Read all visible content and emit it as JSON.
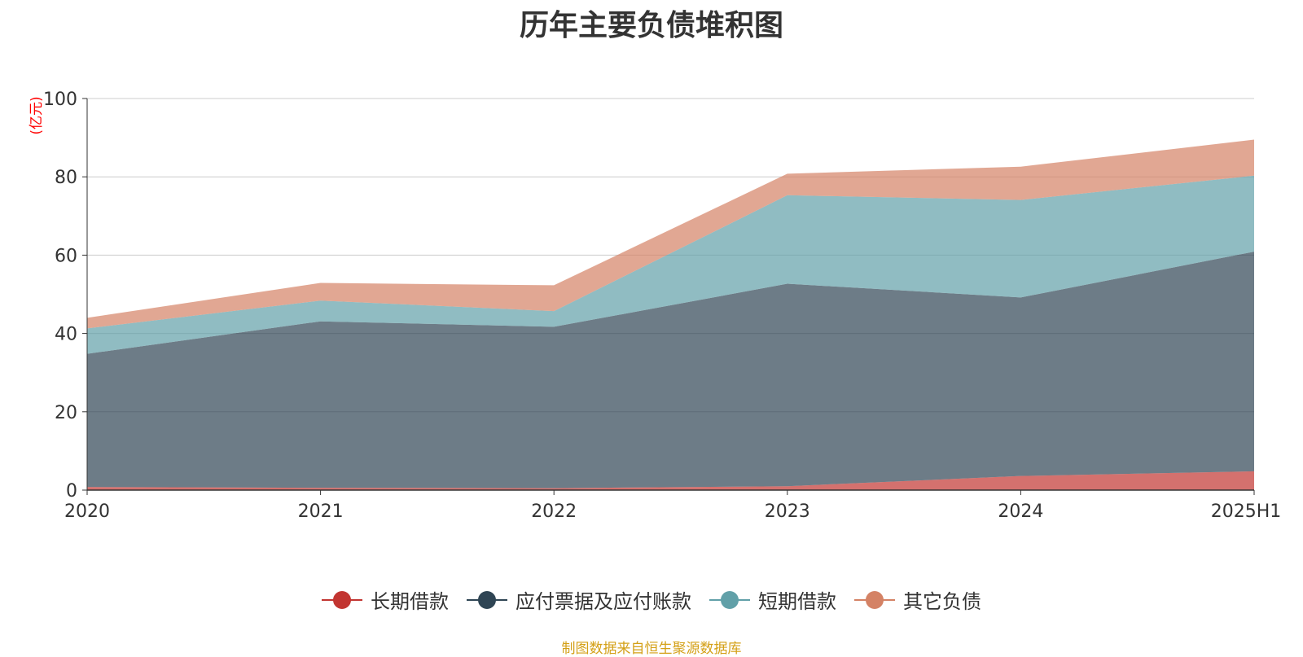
{
  "chart_data": {
    "type": "area",
    "stacked": true,
    "title": "历年主要负债堆积图",
    "ylabel": "(亿元)",
    "categories": [
      "2020",
      "2021",
      "2022",
      "2023",
      "2024",
      "2025H1"
    ],
    "ylim": [
      0,
      100
    ],
    "yticks": [
      0,
      20,
      40,
      60,
      80,
      100
    ],
    "grid": true,
    "legend_position": "bottom",
    "series": [
      {
        "name": "长期借款",
        "color": "#c23531",
        "values": [
          0.8,
          0.6,
          0.5,
          1.0,
          3.6,
          4.8
        ]
      },
      {
        "name": "应付票据及应付账款",
        "color": "#2f4554",
        "values": [
          34,
          42.5,
          41.2,
          51.7,
          45.6,
          56.1
        ]
      },
      {
        "name": "短期借款",
        "color": "#61a0a8",
        "values": [
          6.5,
          5.3,
          4.0,
          22.6,
          24.9,
          19.4
        ]
      },
      {
        "name": "其它负债",
        "color": "#d48265",
        "values": [
          2.7,
          4.5,
          6.6,
          5.5,
          8.5,
          9.2
        ]
      }
    ]
  },
  "footer": {
    "source": "制图数据来自恒生聚源数据库"
  }
}
